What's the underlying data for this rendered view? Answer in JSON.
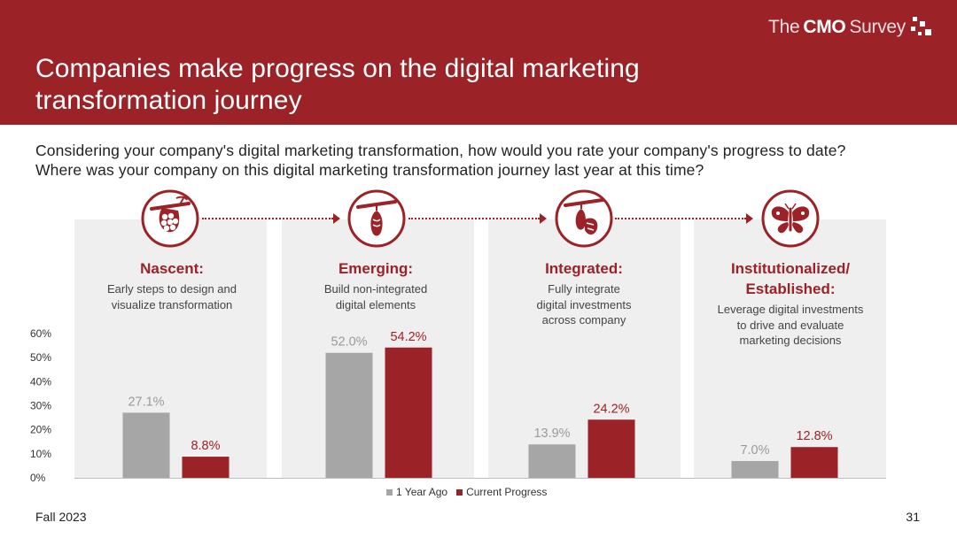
{
  "header": {
    "brand_the": "The",
    "brand_cmo": "CMO",
    "brand_survey": "Survey",
    "title_line1": "Companies make progress on the digital marketing",
    "title_line2": "transformation journey"
  },
  "question": "Considering your company's digital marketing transformation, how would you rate your company's progress to date? Where was your company on this digital marketing transformation journey last year at this time?",
  "stages": [
    {
      "name": "Nascent:",
      "desc_lines": [
        "Early steps to design and",
        "visualize transformation"
      ],
      "icon": "eggs-on-branch-icon"
    },
    {
      "name": "Emerging:",
      "desc_lines": [
        "Build non-integrated",
        "digital elements"
      ],
      "icon": "chrysalis-icon"
    },
    {
      "name": "Integrated:",
      "desc_lines": [
        "Fully integrate",
        "digital investments",
        "across company"
      ],
      "icon": "emerging-butterfly-icon"
    },
    {
      "name_lines": [
        "Institutionalized/",
        "Established:"
      ],
      "desc_lines": [
        "Leverage digital investments",
        "to drive and evaluate",
        "marketing decisions"
      ],
      "icon": "butterfly-icon"
    }
  ],
  "legend": {
    "prior": "1 Year Ago",
    "current": "Current Progress"
  },
  "footer": {
    "left": "Fall 2023",
    "page": "31"
  },
  "colors": {
    "brand_red": "#9b2226",
    "prior_gray": "#a6a6a6",
    "panel_gray": "#efefef"
  },
  "chart_data": {
    "type": "bar",
    "categories": [
      "Nascent",
      "Emerging",
      "Integrated",
      "Institutionalized/ Established"
    ],
    "series": [
      {
        "name": "1 Year Ago",
        "values": [
          27.1,
          52.0,
          13.9,
          7.0
        ],
        "labels": [
          "27.1%",
          "52.0%",
          "13.9%",
          "7.0%"
        ],
        "color": "#a6a6a6"
      },
      {
        "name": "Current Progress",
        "values": [
          8.8,
          54.2,
          24.2,
          12.8
        ],
        "labels": [
          "8.8%",
          "54.2%",
          "24.2%",
          "12.8%"
        ],
        "color": "#9b2226"
      }
    ],
    "ylim": [
      0,
      60
    ],
    "yticks": [
      0,
      10,
      20,
      30,
      40,
      50,
      60
    ],
    "ytick_labels": [
      "0%",
      "10%",
      "20%",
      "30%",
      "40%",
      "50%",
      "60%"
    ],
    "xlabel": "",
    "ylabel": "",
    "grid": false,
    "legend_position": "bottom-center"
  }
}
